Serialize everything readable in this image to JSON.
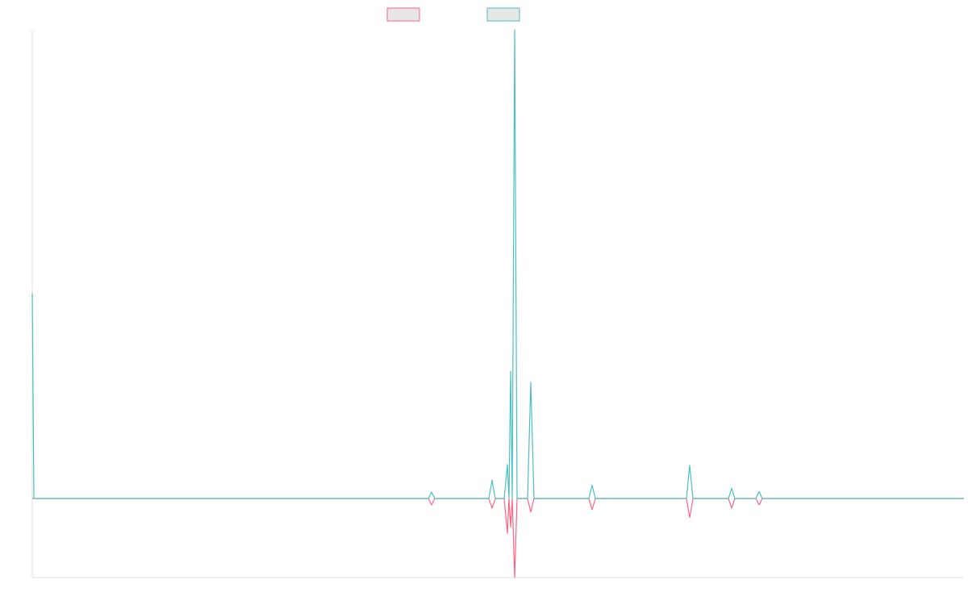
{
  "chart_data": {
    "type": "line",
    "x": [
      0,
      2,
      491,
      495,
      499,
      566,
      570,
      574,
      585,
      589,
      591,
      593,
      595,
      598,
      601,
      614,
      618,
      622,
      690,
      694,
      698,
      811,
      815,
      819,
      863,
      867,
      871,
      897,
      901,
      905,
      1155
    ],
    "xlim": [
      0,
      1155
    ],
    "ylim": [
      -10,
      59.3
    ],
    "series": [
      {
        "color": "#ff6384",
        "fill": "#e6e6e6",
        "values": [
          0,
          0,
          0,
          -0.8,
          0,
          0,
          -1.2,
          0,
          0,
          -4.4,
          0,
          -3.6,
          0,
          -10,
          0,
          0,
          -1.7,
          0,
          0,
          -1.4,
          0,
          0,
          -2.4,
          0,
          0,
          -1.2,
          0,
          0,
          -0.8,
          0,
          0
        ]
      },
      {
        "color": "#4bc0c0",
        "fill": "#e6e6e6",
        "values": [
          26,
          0,
          0,
          0.8,
          0,
          0,
          2.3,
          0,
          0,
          4.3,
          0,
          16.1,
          0,
          59.3,
          0,
          0,
          14.7,
          0,
          0,
          1.7,
          0,
          0,
          4.2,
          0,
          0,
          1.3,
          0,
          0,
          0.9,
          0,
          0
        ]
      }
    ]
  }
}
